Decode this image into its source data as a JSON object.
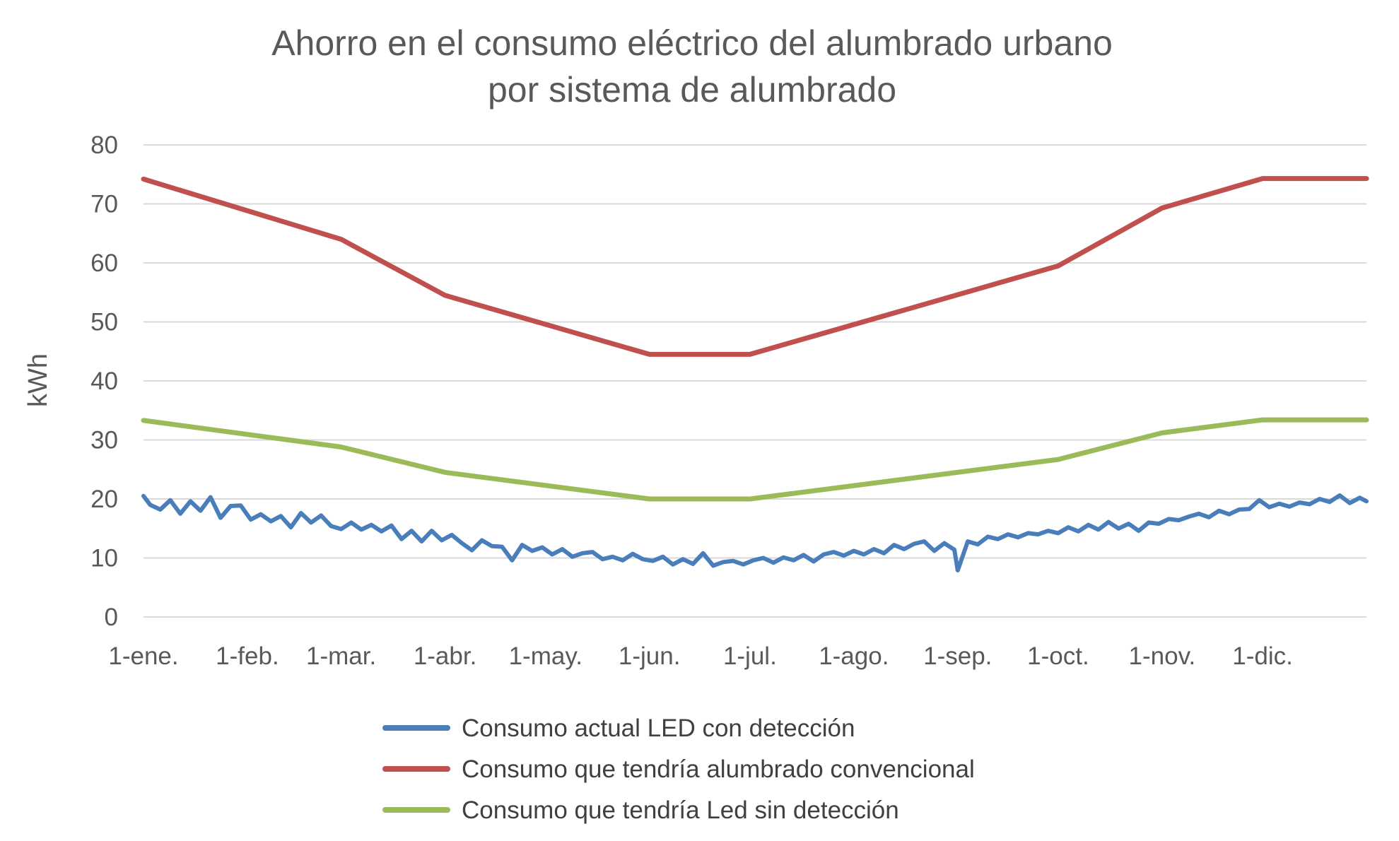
{
  "chart_data": {
    "type": "line",
    "title": [
      "Ahorro en el consumo eléctrico del alumbrado urbano",
      "por sistema de alumbrado"
    ],
    "xlabel": "",
    "ylabel": "kWh",
    "ylim": [
      0,
      80
    ],
    "yticks": [
      0,
      10,
      20,
      30,
      40,
      50,
      60,
      70,
      80
    ],
    "x_tick_labels": [
      "1-ene.",
      "1-feb.",
      "1-mar.",
      "1-abr.",
      "1-may.",
      "1-jun.",
      "1-jul.",
      "1-ago.",
      "1-sep.",
      "1-oct.",
      "1-nov.",
      "1-dic."
    ],
    "x_tick_days": [
      1,
      32,
      60,
      91,
      121,
      152,
      182,
      213,
      244,
      274,
      305,
      335
    ],
    "xlim_days": [
      1,
      366
    ],
    "grid": true,
    "legend_position": "bottom",
    "series": [
      {
        "name": "Consumo actual LED con detección",
        "color": "#4a7ebb",
        "x_days": [
          1,
          3,
          6,
          9,
          12,
          15,
          18,
          21,
          24,
          27,
          30,
          33,
          36,
          39,
          42,
          45,
          48,
          51,
          54,
          57,
          60,
          63,
          66,
          69,
          72,
          75,
          78,
          81,
          84,
          87,
          90,
          93,
          96,
          99,
          102,
          105,
          108,
          111,
          114,
          117,
          120,
          123,
          126,
          129,
          132,
          135,
          138,
          141,
          144,
          147,
          150,
          153,
          156,
          159,
          162,
          165,
          168,
          171,
          174,
          177,
          180,
          183,
          186,
          189,
          192,
          195,
          198,
          201,
          204,
          207,
          210,
          213,
          216,
          219,
          222,
          225,
          228,
          231,
          234,
          237,
          240,
          243,
          244,
          247,
          250,
          253,
          256,
          259,
          262,
          265,
          268,
          271,
          274,
          277,
          280,
          283,
          286,
          289,
          292,
          295,
          298,
          301,
          304,
          307,
          310,
          313,
          316,
          319,
          322,
          325,
          328,
          331,
          334,
          337,
          340,
          343,
          346,
          349,
          352,
          355,
          358,
          361,
          364,
          366
        ],
        "values": [
          20.5,
          19.0,
          18.2,
          19.8,
          17.5,
          19.6,
          18.0,
          20.3,
          16.8,
          18.8,
          18.9,
          16.5,
          17.4,
          16.2,
          17.1,
          15.2,
          17.6,
          16.0,
          17.2,
          15.4,
          14.9,
          16.0,
          14.8,
          15.6,
          14.5,
          15.5,
          13.2,
          14.6,
          12.8,
          14.6,
          13.0,
          13.9,
          12.5,
          11.3,
          13.0,
          12.0,
          11.9,
          9.6,
          12.2,
          11.2,
          11.8,
          10.6,
          11.5,
          10.2,
          10.8,
          11.0,
          9.8,
          10.2,
          9.6,
          10.7,
          9.8,
          9.5,
          10.2,
          8.9,
          9.8,
          9.0,
          10.8,
          8.7,
          9.3,
          9.5,
          8.9,
          9.6,
          10.0,
          9.2,
          10.1,
          9.6,
          10.5,
          9.4,
          10.6,
          11.0,
          10.4,
          11.2,
          10.6,
          11.5,
          10.8,
          12.2,
          11.5,
          12.4,
          12.8,
          11.2,
          12.5,
          11.4,
          7.9,
          12.8,
          12.3,
          13.6,
          13.2,
          14.0,
          13.5,
          14.2,
          14.0,
          14.6,
          14.2,
          15.2,
          14.5,
          15.6,
          14.8,
          16.1,
          15.0,
          15.8,
          14.6,
          16.0,
          15.8,
          16.6,
          16.4,
          17.0,
          17.5,
          16.9,
          18.0,
          17.4,
          18.2,
          18.3,
          19.8,
          18.6,
          19.2,
          18.7,
          19.4,
          19.1,
          20.0,
          19.5,
          20.6,
          19.3,
          20.2,
          19.6
        ]
      },
      {
        "name": "Consumo que tendría alumbrado convencional",
        "color": "#c0504d",
        "x_days": [
          1,
          60,
          91,
          152,
          182,
          274,
          305,
          335,
          366
        ],
        "values": [
          74.2,
          64.0,
          54.5,
          44.5,
          44.5,
          59.5,
          69.3,
          74.3,
          74.3
        ]
      },
      {
        "name": "Consumo que tendría Led sin detección",
        "color": "#9bbb59",
        "x_days": [
          1,
          60,
          91,
          152,
          182,
          274,
          305,
          335,
          366
        ],
        "values": [
          33.3,
          28.8,
          24.5,
          20.0,
          20.0,
          26.7,
          31.2,
          33.4,
          33.4
        ]
      }
    ]
  }
}
